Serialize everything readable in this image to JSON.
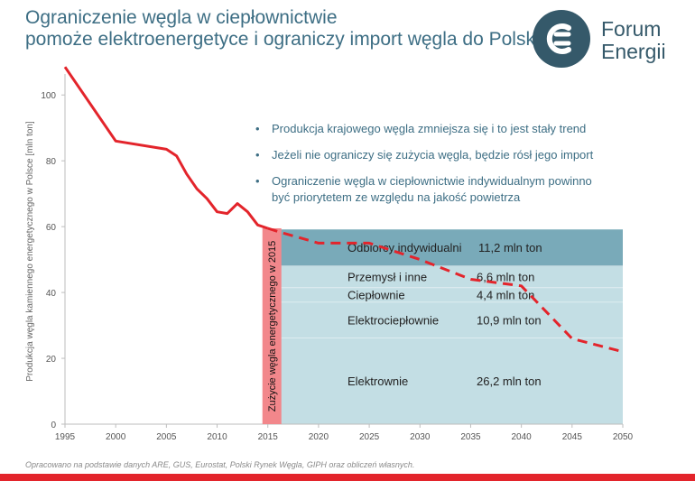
{
  "title": {
    "line1": "Ograniczenie węgla w ciepłownictwie",
    "line2": "pomoże elektroenergetyce i ograniczy import węgla do Polski"
  },
  "logo": {
    "line1": "Forum",
    "line2": "Energii"
  },
  "bullets": [
    "Produkcja krajowego węgla zmniejsza się i to jest stały trend",
    "Jeżeli nie ograniczy się zużycia węgla, będzie rósł jego import",
    "Ograniczenie węgla w ciepłownictwie indywidualnym powinno",
    "być priorytetem ze względu na jakość powietrza"
  ],
  "footer": "Opracowano na podstawie danych ARE, GUS, Eurostat, Polski Rynek Węgla, GIPH oraz obliczeń własnych.",
  "colors": {
    "production_line": "#e3242b",
    "bar_2015": "#f2878b",
    "block_dark": "#79aab9",
    "block_light": "#c3dee4",
    "title": "#3d6e84",
    "logo": "#35596a"
  },
  "chart_data": {
    "type": "line",
    "ylabel": "Produkcja węgla kamiennego energetycznego w Polsce [mln ton]",
    "xlim": [
      1995,
      2050
    ],
    "ylim": [
      0,
      105
    ],
    "xticks": [
      1995,
      2000,
      2005,
      2010,
      2015,
      2020,
      2025,
      2030,
      2035,
      2040,
      2045,
      2050
    ],
    "yticks": [
      0,
      20,
      40,
      60,
      80,
      100
    ],
    "series": [
      {
        "style": "solid",
        "x": [
          1995,
          2000,
          2005,
          2006,
          2007,
          2008,
          2009,
          2010,
          2011,
          2012,
          2013,
          2014,
          2015
        ],
        "y": [
          108.5,
          86,
          83.5,
          81.5,
          76,
          71.5,
          68.5,
          64.5,
          64,
          67,
          64.5,
          60.5,
          59.5
        ]
      },
      {
        "style": "dashed",
        "x": [
          2015,
          2016,
          2020,
          2025,
          2030,
          2035,
          2040,
          2045,
          2050
        ],
        "y": [
          59.5,
          58.5,
          55,
          55,
          50,
          44,
          42,
          26,
          22
        ]
      }
    ],
    "bar_2015": {
      "label": "Zużycie węgla energetycznego w 2015",
      "x": 2015,
      "value": 59.5
    },
    "consumption_2015": [
      {
        "sector": "Elektrownie",
        "value_label": "26,2 mln ton",
        "value": 26.2
      },
      {
        "sector": "Elektrociepłownie",
        "value_label": "10,9 mln ton",
        "value": 10.9
      },
      {
        "sector": "Ciepłownie",
        "value_label": "4,4 mln ton",
        "value": 4.4
      },
      {
        "sector": "Przemysł i inne",
        "value_label": "6,6 mln ton",
        "value": 6.6
      },
      {
        "sector": "Odbiorcy indywidualni",
        "value_label": "11,2 mln ton",
        "value": 11.2
      }
    ]
  }
}
